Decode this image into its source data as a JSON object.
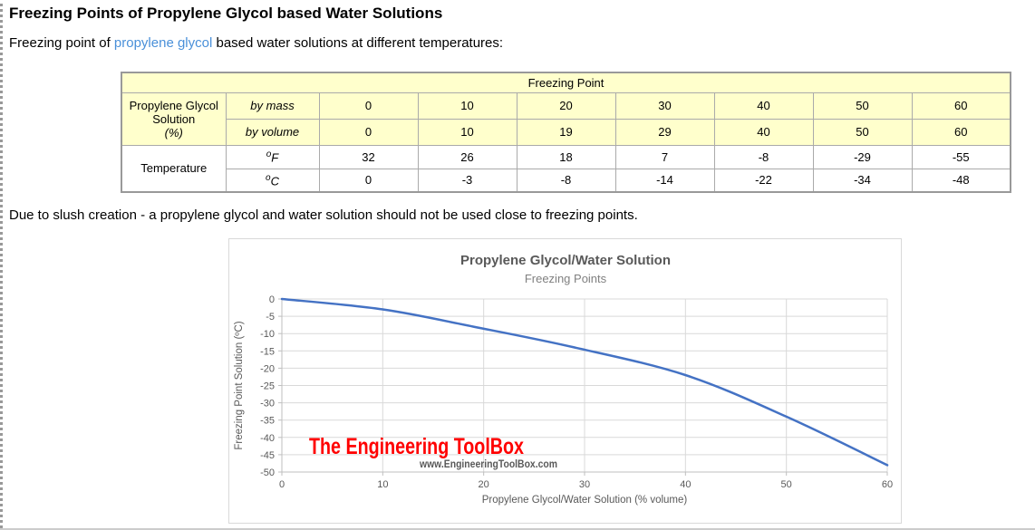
{
  "page": {
    "heading": "Freezing Points of Propylene Glycol based Water Solutions",
    "intro": {
      "before_link": "Freezing point of ",
      "link_text": "propylene glycol",
      "after_link": " based water solutions at different temperatures:"
    },
    "note": "Due to slush creation - a propylene glycol and water solution should not be used close to freezing points.",
    "colors": {
      "link": "#4a90d9",
      "table_header_bg": "#ffffcc"
    }
  },
  "table": {
    "top_header": "Freezing Point",
    "solution_group": {
      "label_main": "Propylene Glycol Solution",
      "label_unit": "(%)",
      "rows": [
        {
          "label": "by mass",
          "values": [
            "0",
            "10",
            "20",
            "30",
            "40",
            "50",
            "60"
          ]
        },
        {
          "label": "by volume",
          "values": [
            "0",
            "10",
            "19",
            "29",
            "40",
            "50",
            "60"
          ]
        }
      ]
    },
    "temperature_group": {
      "label_main": "Temperature",
      "rows": [
        {
          "sup": "o",
          "base": "F",
          "values": [
            "32",
            "26",
            "18",
            "7",
            "-8",
            "-29",
            "-55"
          ]
        },
        {
          "sup": "o",
          "base": "C",
          "values": [
            "0",
            "-3",
            "-8",
            "-14",
            "-22",
            "-34",
            "-48"
          ]
        }
      ]
    }
  },
  "chart_data": {
    "type": "line",
    "title": "Propylene Glycol/Water Solution",
    "subtitle": "Freezing Points",
    "xlabel": "Propylene Glycol/Water Solution  (% volume)",
    "ylabel": "Freezing Point  Solution  (ºC)",
    "x": [
      0,
      10,
      19,
      29,
      40,
      50,
      60
    ],
    "y": [
      0,
      -3,
      -8,
      -14,
      -22,
      -34,
      -48
    ],
    "xlim": [
      0,
      60
    ],
    "ylim": [
      -50,
      0
    ],
    "x_ticks": [
      0,
      10,
      20,
      30,
      40,
      50,
      60
    ],
    "y_ticks": [
      0,
      -5,
      -10,
      -15,
      -20,
      -25,
      -30,
      -35,
      -40,
      -45,
      -50
    ],
    "grid": true,
    "legend": "none",
    "line_color": "#4472C4",
    "grid_color": "#D9D9D9",
    "axis_line_color": "#BFBFBF",
    "axis_text_color": "#595959",
    "title_color": "#595959",
    "subtitle_color": "#808080",
    "watermark": {
      "title": "The Engineering ToolBox",
      "url": "www.EngineeringToolBox.com",
      "title_color": "#FF0000",
      "url_color": "#595959"
    }
  }
}
